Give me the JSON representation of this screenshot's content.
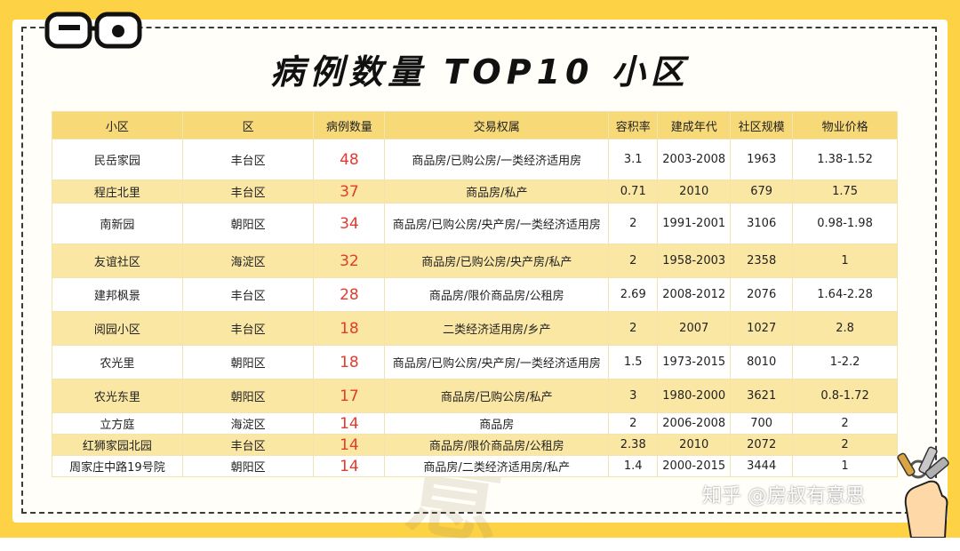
{
  "title": "病例数量 TOP10 小区",
  "columns": [
    "小区",
    "区",
    "病例数量",
    "交易权属",
    "容积率",
    "建成年代",
    "社区规模",
    "物业价格"
  ],
  "rows": [
    [
      "民岳家园",
      "丰台区",
      "48",
      "商品房/已购公房/一类经济适用房",
      "3.1",
      "2003-2008",
      "1963",
      "1.38-1.52"
    ],
    [
      "程庄北里",
      "丰台区",
      "37",
      "商品房/私产",
      "0.71",
      "2010",
      "679",
      "1.75"
    ],
    [
      "南新园",
      "朝阳区",
      "34",
      "商品房/已购公房/央产房/一类经济适用房",
      "2",
      "1991-2001",
      "3106",
      "0.98-1.98"
    ],
    [
      "友谊社区",
      "海淀区",
      "32",
      "商品房/已购公房/央产房/私产",
      "2",
      "1958-2003",
      "2358",
      "1"
    ],
    [
      "建邦枫景",
      "丰台区",
      "28",
      "商品房/限价商品房/公租房",
      "2.69",
      "2008-2012",
      "2076",
      "1.64-2.28"
    ],
    [
      "阅园小区",
      "丰台区",
      "18",
      "二类经济适用房/乡产",
      "2",
      "2007",
      "1027",
      "2.8"
    ],
    [
      "农光里",
      "朝阳区",
      "18",
      "商品房/已购公房/央产房/一类经济适用房",
      "1.5",
      "1973-2015",
      "8010",
      "1-2.2"
    ],
    [
      "农光东里",
      "朝阳区",
      "17",
      "商品房/已购公房/私产",
      "3",
      "1980-2000",
      "3621",
      "0.8-1.72"
    ],
    [
      "立方庭",
      "海淀区",
      "14",
      "商品房",
      "2",
      "2006-2008",
      "700",
      "2"
    ],
    [
      "红狮家园北园",
      "丰台区",
      "14",
      "商品房/限价商品房/公租房",
      "2.38",
      "2010",
      "2072",
      "2"
    ],
    [
      "周家庄中路19号院",
      "朝阳区",
      "14",
      "商品房/二类经济适用房/私产",
      "1.4",
      "2000-2015",
      "3444",
      "1"
    ]
  ],
  "watermark_bg": "房叔有意思",
  "watermark": "知乎 @房叔有意思"
}
